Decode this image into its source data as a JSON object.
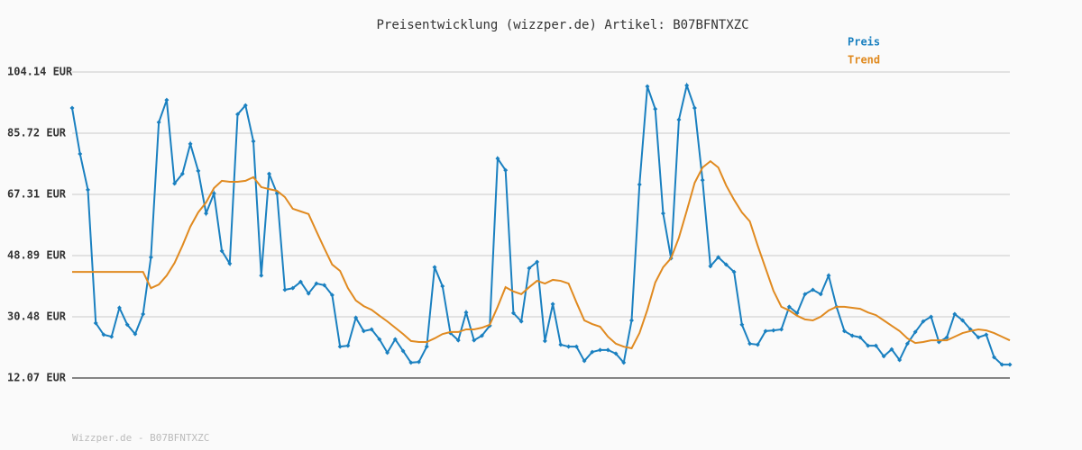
{
  "chart_data": {
    "type": "line",
    "title": "Preisentwicklung (wizzper.de) Artikel: B07BFNTXZC",
    "footer": "Wizzper.de - B07BFNTXZC",
    "legend": "top-right",
    "grid": true,
    "ylim": [
      12.07,
      104.14
    ],
    "yticks": [
      {
        "value": 12.07,
        "label": "12.07 EUR"
      },
      {
        "value": 30.48,
        "label": "30.48 EUR"
      },
      {
        "value": 48.89,
        "label": "48.89 EUR"
      },
      {
        "value": 67.31,
        "label": "67.31 EUR"
      },
      {
        "value": 85.72,
        "label": "85.72 EUR"
      },
      {
        "value": 104.14,
        "label": "104.14 EUR"
      }
    ],
    "series": [
      {
        "name": "Preis",
        "color": "#1a80c0",
        "values": [
          93.3,
          79.5,
          68.7,
          28.6,
          25.1,
          24.5,
          33.2,
          28.1,
          25.3,
          31.3,
          48.4,
          89.0,
          95.7,
          70.6,
          73.5,
          82.5,
          74.4,
          61.6,
          67.6,
          50.3,
          46.5,
          91.4,
          94.1,
          83.3,
          42.9,
          73.5,
          67.6,
          38.6,
          39.1,
          41.0,
          37.5,
          40.5,
          40.0,
          37.0,
          21.5,
          21.8,
          30.2,
          26.2,
          26.7,
          23.7,
          19.7,
          23.7,
          20.2,
          16.7,
          16.9,
          21.5,
          45.4,
          39.7,
          25.6,
          23.4,
          31.8,
          23.4,
          24.8,
          27.8,
          78.1,
          74.6,
          31.6,
          29.1,
          45.1,
          47.0,
          23.2,
          34.3,
          22.1,
          21.5,
          21.5,
          17.2,
          19.9,
          20.5,
          20.5,
          19.4,
          16.7,
          29.4,
          70.3,
          99.8,
          93.0,
          61.6,
          48.1,
          89.8,
          100.1,
          93.3,
          71.6,
          45.7,
          48.4,
          46.2,
          44.0,
          28.1,
          22.4,
          22.1,
          26.2,
          26.4,
          26.7,
          33.5,
          31.6,
          37.3,
          38.6,
          37.3,
          42.9,
          33.5,
          26.2,
          24.8,
          24.3,
          21.8,
          21.8,
          18.6,
          20.7,
          17.5,
          22.4,
          25.9,
          29.1,
          30.5,
          22.9,
          24.3,
          31.3,
          29.4,
          26.7,
          24.3,
          25.1,
          18.3,
          16.1,
          16.1
        ]
      },
      {
        "name": "Trend",
        "color": "#e08a20",
        "values": [
          44.0,
          44.0,
          44.0,
          44.0,
          44.0,
          44.0,
          44.0,
          44.0,
          44.0,
          44.0,
          39.1,
          40.2,
          42.9,
          46.7,
          51.9,
          57.6,
          61.9,
          64.9,
          69.2,
          71.4,
          71.1,
          71.1,
          71.4,
          72.5,
          69.5,
          68.9,
          68.4,
          66.5,
          63.0,
          62.2,
          61.4,
          56.2,
          51.1,
          46.2,
          44.3,
          39.1,
          35.4,
          33.7,
          32.6,
          30.8,
          29.1,
          27.2,
          25.3,
          23.2,
          22.9,
          22.9,
          24.0,
          25.3,
          25.9,
          25.9,
          26.7,
          26.7,
          27.2,
          28.1,
          33.5,
          39.4,
          38.1,
          37.3,
          39.4,
          41.3,
          40.5,
          41.6,
          41.3,
          40.5,
          34.8,
          29.4,
          28.3,
          27.5,
          24.5,
          22.4,
          21.5,
          21.0,
          25.6,
          32.6,
          40.8,
          45.4,
          48.1,
          54.3,
          62.4,
          70.8,
          75.4,
          77.3,
          75.4,
          70.0,
          65.7,
          61.9,
          59.2,
          51.9,
          45.1,
          38.3,
          33.5,
          32.4,
          30.8,
          29.7,
          29.4,
          30.5,
          32.4,
          33.5,
          33.5,
          33.2,
          32.9,
          31.8,
          31.0,
          29.4,
          27.8,
          26.2,
          24.0,
          22.6,
          22.9,
          23.4,
          23.4,
          23.4,
          24.5,
          25.6,
          26.2,
          26.7,
          26.4,
          25.6,
          24.5,
          23.4
        ]
      }
    ]
  }
}
